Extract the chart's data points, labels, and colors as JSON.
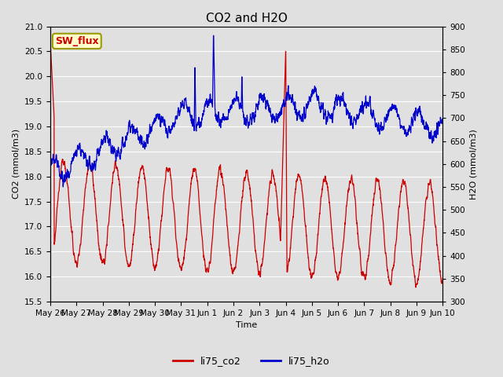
{
  "title": "CO2 and H2O",
  "xlabel": "Time",
  "ylabel_left": "CO2 (mmol/m3)",
  "ylabel_right": "H2O (mmol/m3)",
  "ylim_left": [
    15.5,
    21.0
  ],
  "ylim_right": [
    300,
    900
  ],
  "co2_color": "#cc0000",
  "h2o_color": "#0000cc",
  "bg_color": "#e0e0e0",
  "grid_color": "#ffffff",
  "legend_labels": [
    "li75_co2",
    "li75_h2o"
  ],
  "annotation_text": "SW_flux",
  "annotation_bg": "#ffffcc",
  "annotation_border": "#999900",
  "xtick_labels": [
    "May 26",
    "May 27",
    "May 28",
    "May 29",
    "May 30",
    "May 31",
    "Jun 1",
    "Jun 2",
    "Jun 3",
    "Jun 4",
    "Jun 5",
    "Jun 6",
    "Jun 7",
    "Jun 8",
    "Jun 9",
    "Jun 10"
  ],
  "yticks_left": [
    15.5,
    16.0,
    16.5,
    17.0,
    17.5,
    18.0,
    18.5,
    19.0,
    19.5,
    20.0,
    20.5,
    21.0
  ],
  "yticks_right": [
    300,
    350,
    400,
    450,
    500,
    550,
    600,
    650,
    700,
    750,
    800,
    850,
    900
  ],
  "title_fontsize": 11,
  "label_fontsize": 8,
  "tick_fontsize": 7.5,
  "legend_fontsize": 9,
  "linewidth": 0.9
}
